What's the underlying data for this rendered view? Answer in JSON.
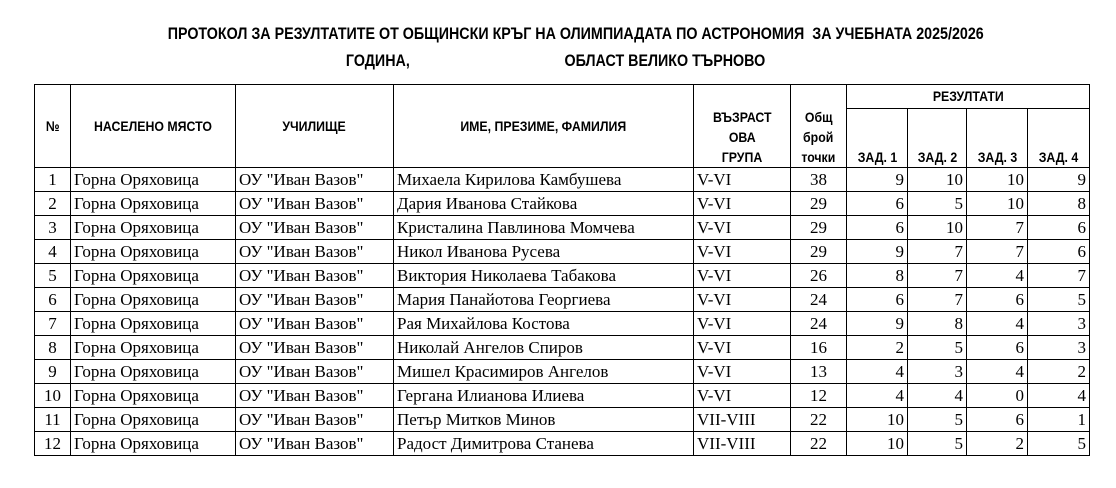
{
  "title_line1": "ПРОТОКОЛ ЗА РЕЗУЛТАТИТЕ ОТ ОБЩИНСКИ КРЪГ НА ОЛИМПИАДАТА ПО АСТРОНОМИЯ  ЗА УЧЕБНАТА 2025/2026",
  "title_line2": "ГОДИНА,                                       ОБЛАСТ ВЕЛИКО ТЪРНОВО",
  "headers": {
    "num": "№",
    "place": "НАСЕЛЕНО МЯСТО",
    "school": "УЧИЛИЩЕ",
    "name": "ИМЕ, ПРЕЗИМЕ, ФАМИЛИЯ",
    "age_group_1": "ВЪЗРАСТ",
    "age_group_2": "ОВА",
    "age_group_3": "ГРУПА",
    "total_1": "Общ",
    "total_2": "брой",
    "total_3": "точки",
    "results": "РЕЗУЛТАТИ",
    "task1": "ЗАД. 1",
    "task2": "ЗАД. 2",
    "task3": "ЗАД. 3",
    "task4": "ЗАД. 4"
  },
  "rows": [
    [
      "1",
      "Горна Оряховица",
      "ОУ \"Иван Вазов\"",
      "Михаела Кирилова Камбушева",
      "V-VI",
      "38",
      "9",
      "10",
      "10",
      "9"
    ],
    [
      "2",
      "Горна Оряховица",
      "ОУ \"Иван Вазов\"",
      "Дария Иванова Стайкова",
      "V-VI",
      "29",
      "6",
      "5",
      "10",
      "8"
    ],
    [
      "3",
      "Горна Оряховица",
      "ОУ \"Иван Вазов\"",
      "Кристалина Павлинова Момчева",
      "V-VI",
      "29",
      "6",
      "10",
      "7",
      "6"
    ],
    [
      "4",
      "Горна Оряховица",
      "ОУ \"Иван Вазов\"",
      "Никол Иванова Русева",
      "V-VI",
      "29",
      "9",
      "7",
      "7",
      "6"
    ],
    [
      "5",
      "Горна Оряховица",
      "ОУ \"Иван Вазов\"",
      "Виктория Николаева Табакова",
      "V-VI",
      "26",
      "8",
      "7",
      "4",
      "7"
    ],
    [
      "6",
      "Горна Оряховица",
      "ОУ \"Иван Вазов\"",
      "Мария Панайотова Георгиева",
      "V-VI",
      "24",
      "6",
      "7",
      "6",
      "5"
    ],
    [
      "7",
      "Горна Оряховица",
      "ОУ \"Иван Вазов\"",
      "Рая Михайлова Костова",
      "V-VI",
      "24",
      "9",
      "8",
      "4",
      "3"
    ],
    [
      "8",
      "Горна Оряховица",
      "ОУ \"Иван Вазов\"",
      "Николай Ангелов Спиров",
      "V-VI",
      "16",
      "2",
      "5",
      "6",
      "3"
    ],
    [
      "9",
      "Горна Оряховица",
      "ОУ \"Иван Вазов\"",
      "Мишел Красимиров Ангелов",
      "V-VI",
      "13",
      "4",
      "3",
      "4",
      "2"
    ],
    [
      "10",
      "Горна Оряховица",
      "ОУ \"Иван Вазов\"",
      "Гергана Илианова Илиева",
      "V-VI",
      "12",
      "4",
      "4",
      "0",
      "4"
    ],
    [
      "11",
      "Горна Оряховица",
      "ОУ \"Иван Вазов\"",
      "Петър Митков Минов",
      "VII-VIII",
      "22",
      "10",
      "5",
      "6",
      "1"
    ],
    [
      "12",
      "Горна Оряховица",
      "ОУ \"Иван Вазов\"",
      "Радост Димитрова Станева",
      "VII-VIII",
      "22",
      "10",
      "5",
      "2",
      "5"
    ]
  ]
}
